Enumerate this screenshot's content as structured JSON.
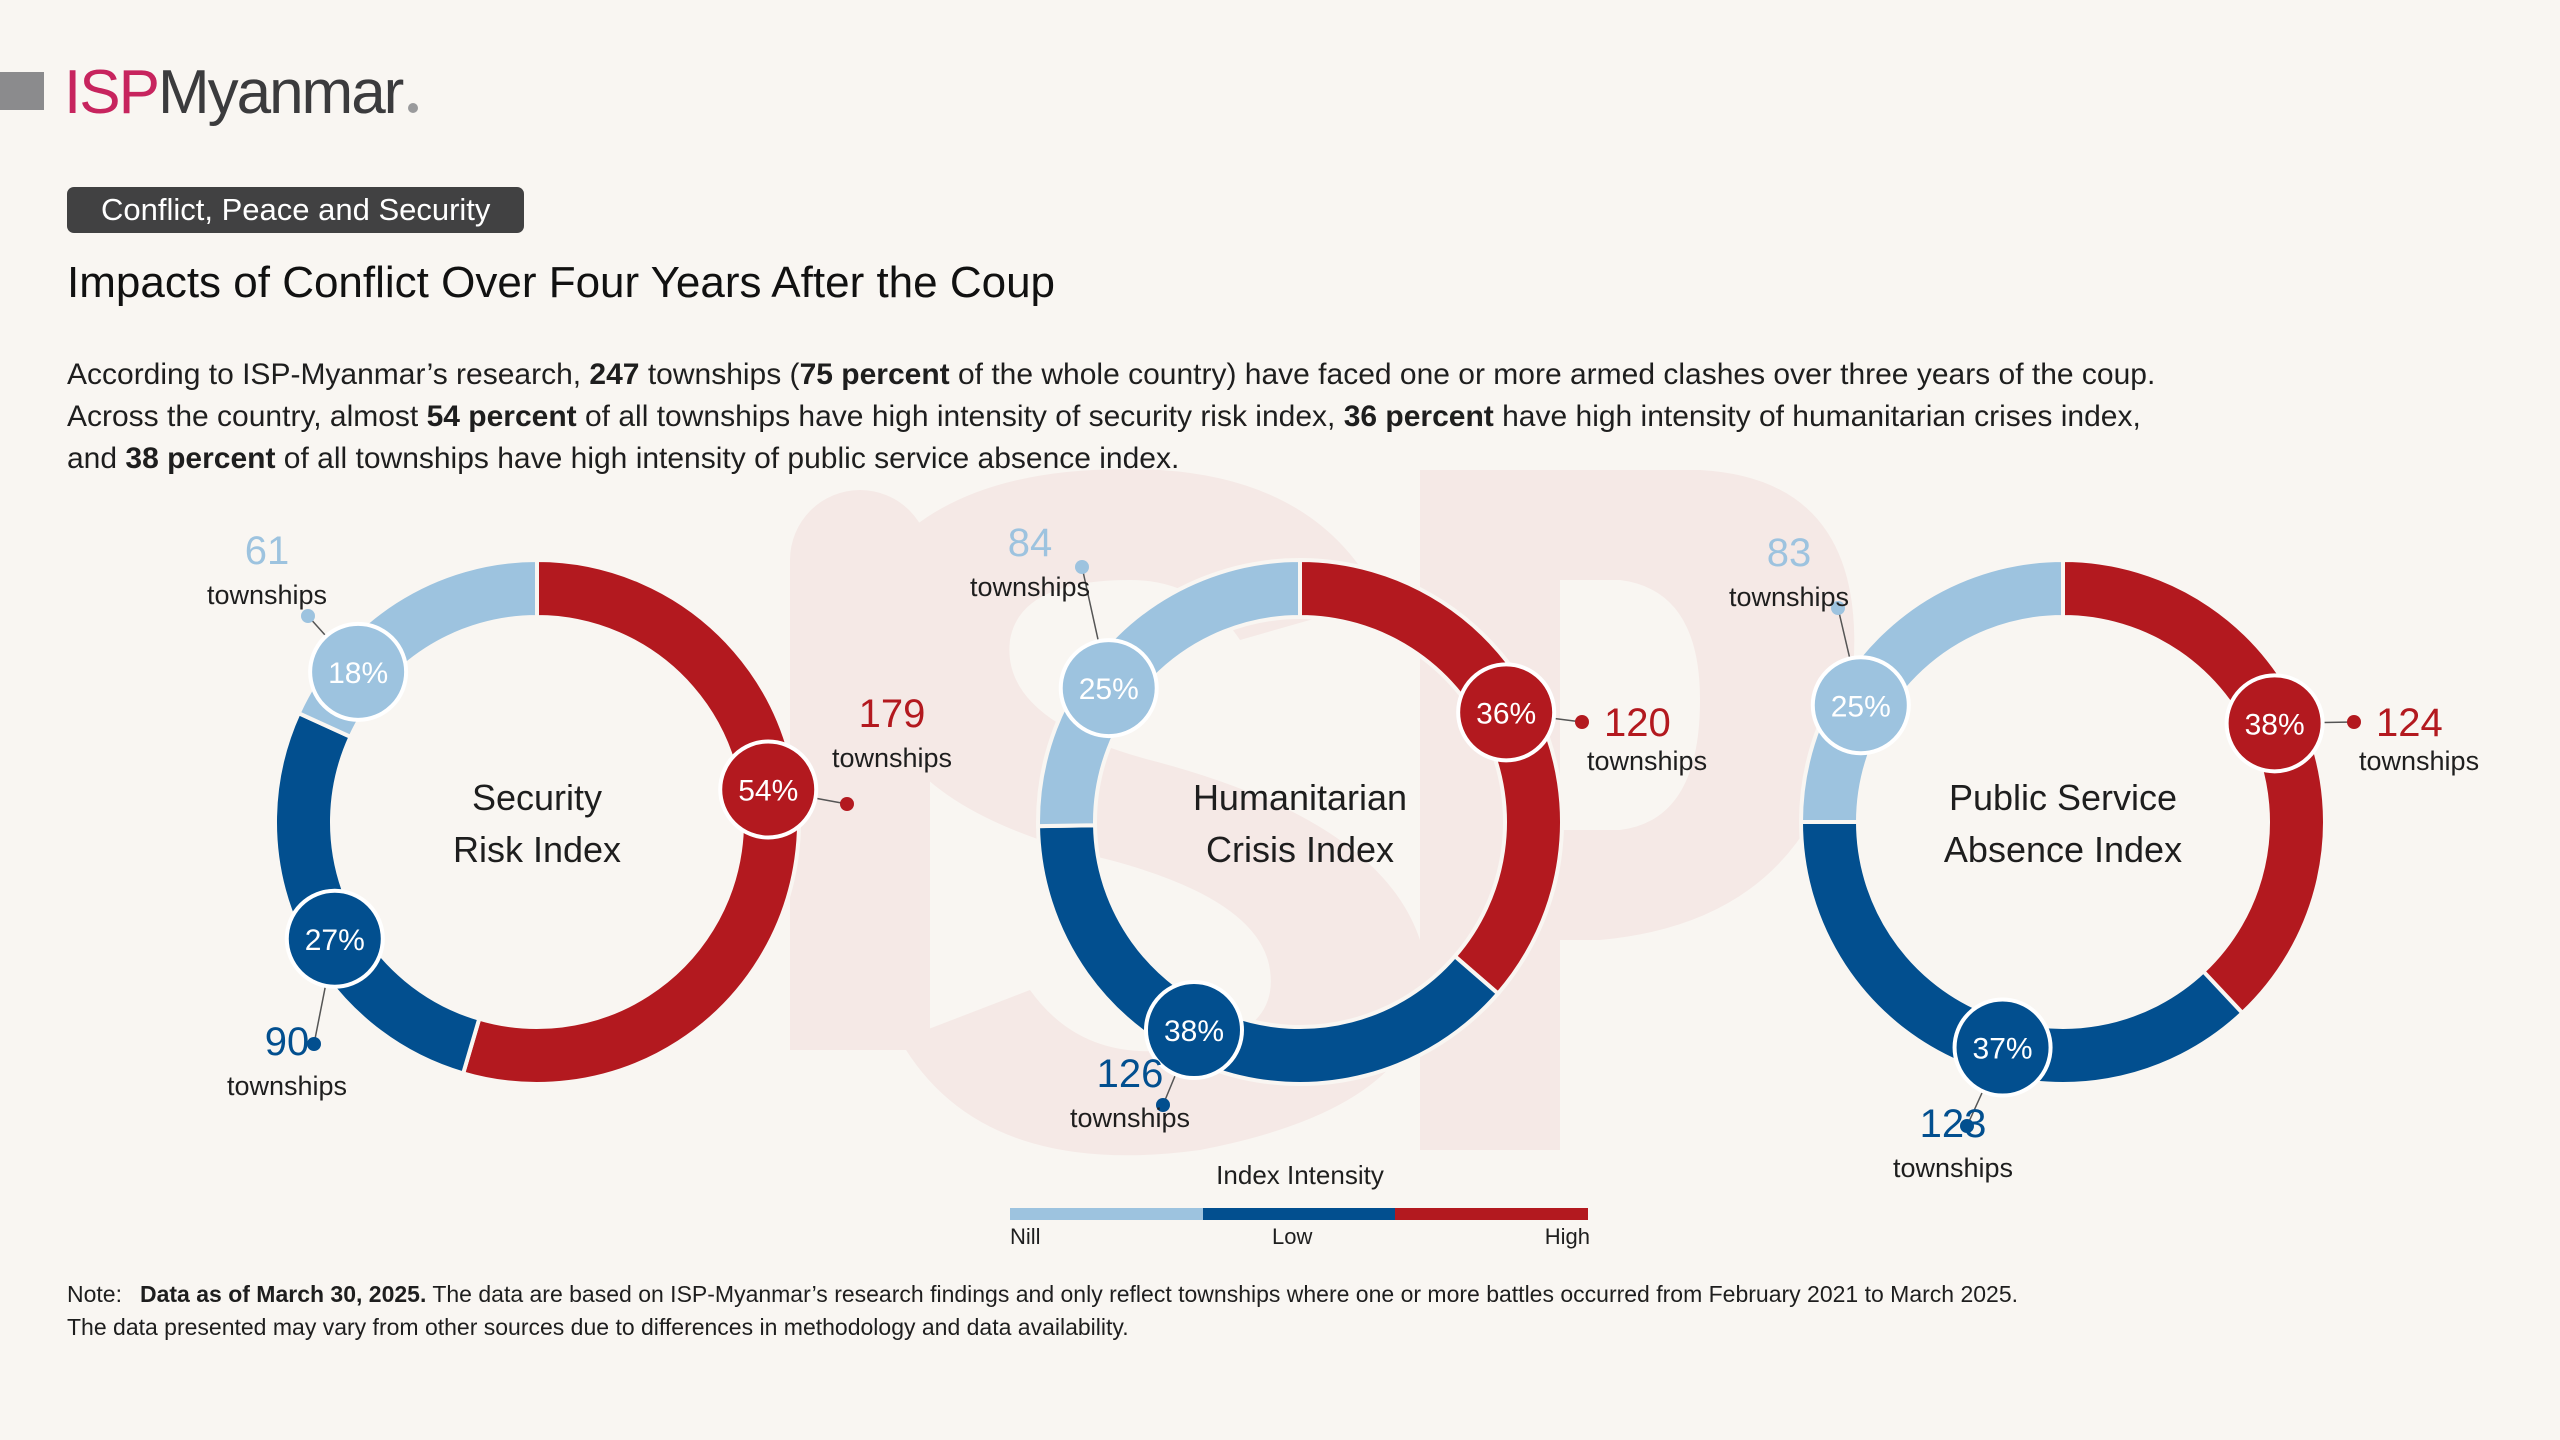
{
  "header": {
    "logo_isp": "ISP",
    "logo_rest": "Myanmar",
    "tag": "Conflict, Peace and Security",
    "title": "Impacts of Conflict Over Four Years After the Coup"
  },
  "intro": {
    "line1": [
      {
        "t": "According to ISP-Myanmar’s research, ",
        "b": false
      },
      {
        "t": "247",
        "b": true
      },
      {
        "t": " townships (",
        "b": false
      },
      {
        "t": "75 percent",
        "b": true
      },
      {
        "t": " of the whole country) have faced one or more armed clashes over three years of the coup.",
        "b": false
      }
    ],
    "line2": [
      {
        "t": "Across the country, almost ",
        "b": false
      },
      {
        "t": "54 percent",
        "b": true
      },
      {
        "t": " of all townships have high intensity of security risk index, ",
        "b": false
      },
      {
        "t": "36 percent",
        "b": true
      },
      {
        "t": " have high intensity of humanitarian crises index,",
        "b": false
      }
    ],
    "line3": [
      {
        "t": "and ",
        "b": false
      },
      {
        "t": "38 percent",
        "b": true
      },
      {
        "t": " of all townships have high intensity of public service absence index.",
        "b": false
      }
    ]
  },
  "colors": {
    "high": "#b3191f",
    "low": "#024f8f",
    "nill": "#9dc3df",
    "text": "#1e1e1e"
  },
  "chart_data": {
    "type": "pie",
    "variant": "donut",
    "unit_label": "townships",
    "categories": [
      "High",
      "Low",
      "Nill"
    ],
    "charts": [
      {
        "title_lines": [
          "Security",
          "Risk Index"
        ],
        "segments": [
          {
            "category": "High",
            "percent": 54,
            "label": "54%",
            "count": 179
          },
          {
            "category": "Low",
            "percent": 27,
            "label": "27%",
            "count": 90
          },
          {
            "category": "Nill",
            "percent": 18,
            "label": "18%",
            "count": 61
          }
        ]
      },
      {
        "title_lines": [
          "Humanitarian",
          "Crisis Index"
        ],
        "segments": [
          {
            "category": "High",
            "percent": 36,
            "label": "36%",
            "count": 120
          },
          {
            "category": "Low",
            "percent": 38,
            "label": "38%",
            "count": 126
          },
          {
            "category": "Nill",
            "percent": 25,
            "label": "25%",
            "count": 84
          }
        ]
      },
      {
        "title_lines": [
          "Public Service",
          "Absence Index"
        ],
        "segments": [
          {
            "category": "High",
            "percent": 38,
            "label": "38%",
            "count": 124
          },
          {
            "category": "Low",
            "percent": 37,
            "label": "37%",
            "count": 123
          },
          {
            "category": "Nill",
            "percent": 25,
            "label": "25%",
            "count": 83
          }
        ]
      }
    ],
    "legend": {
      "title": "Index Intensity",
      "items": [
        "Nill",
        "Low",
        "High"
      ],
      "placement": "bottom-center"
    }
  },
  "note": {
    "label": "Note:",
    "bold": "Data as of March 30, 2025.",
    "rest": " The data are based on ISP-Myanmar’s research findings and only reflect townships where one or more battles occurred from February 2021 to March 2025.",
    "line2": "The data presented may vary from other sources due to differences in methodology and data availability."
  }
}
